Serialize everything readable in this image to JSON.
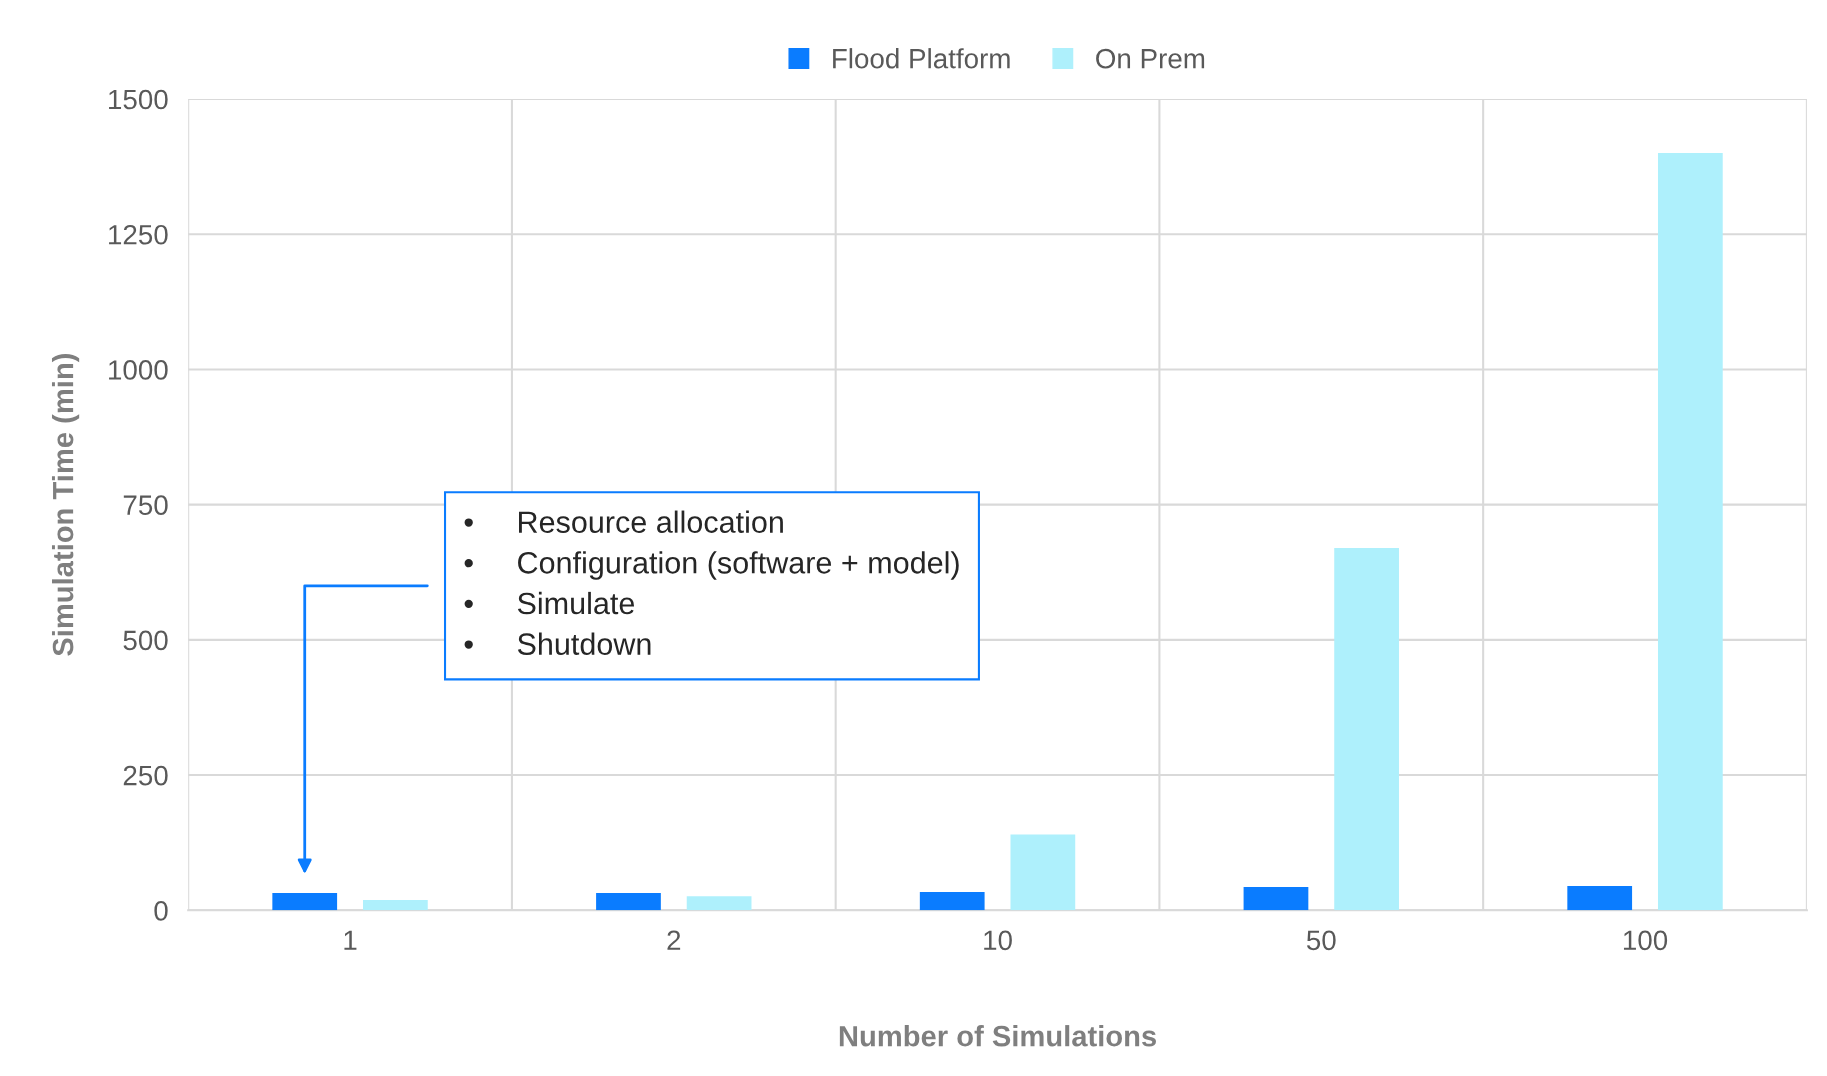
{
  "chart_data": {
    "type": "bar",
    "xlabel": "Number of Simulations",
    "ylabel": "Simulation Time (min)",
    "categories": [
      "1",
      "2",
      "10",
      "50",
      "100"
    ],
    "series": [
      {
        "name": "Flood Platform",
        "color": "#0a7cff",
        "values": [
          32,
          32,
          34,
          43,
          45
        ]
      },
      {
        "name": "On Prem",
        "color": "#aef0fc",
        "values": [
          19,
          26,
          140,
          670,
          1400
        ]
      }
    ],
    "ylim": [
      0,
      1500
    ],
    "yticks": [
      0,
      250,
      500,
      750,
      1000,
      1250,
      1500
    ],
    "grid": true,
    "legend": "top",
    "annotations": [
      "•     Resource allocation\n•     Configuration (software + model)\n•     Simulate\n•     Shutdown"
    ]
  }
}
